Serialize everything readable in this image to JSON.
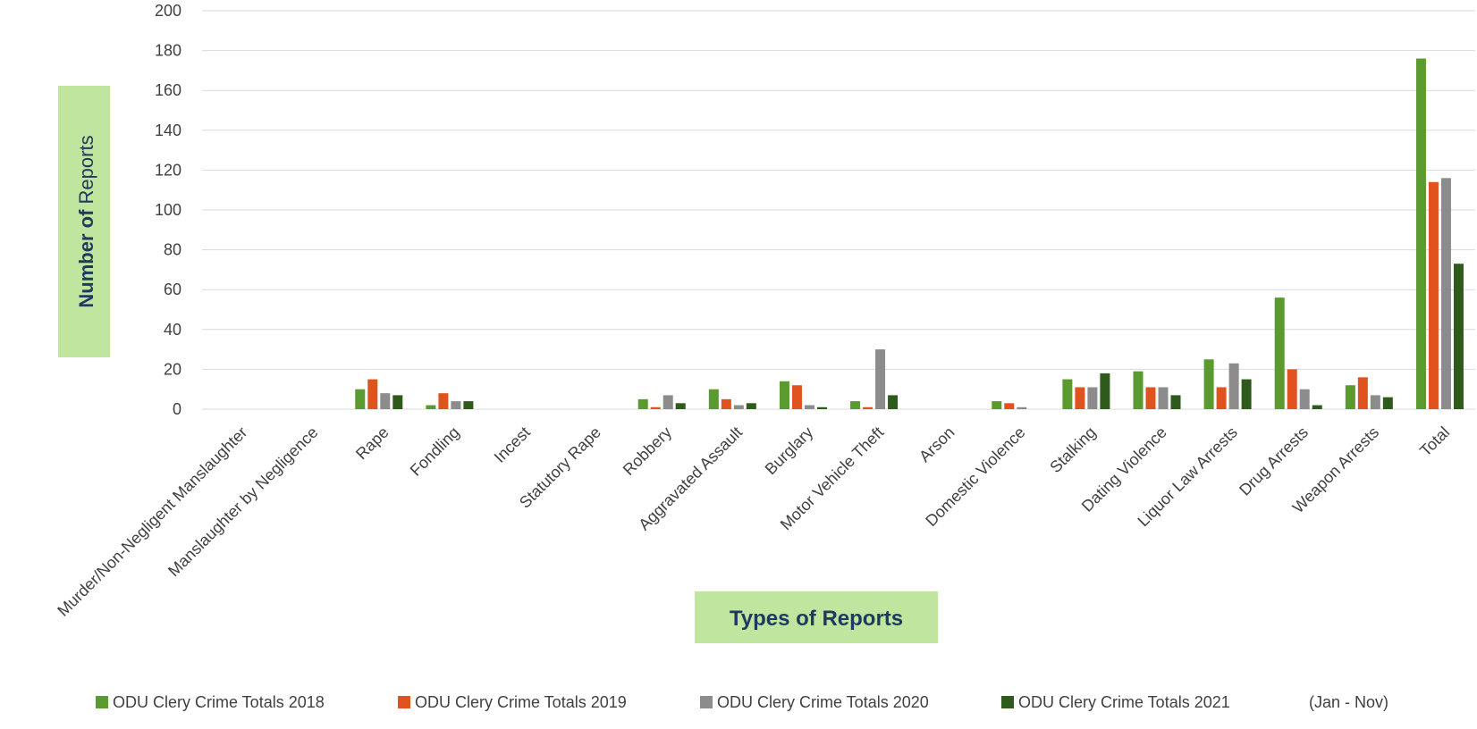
{
  "chart_data": {
    "type": "bar",
    "title": "",
    "xlabel": "Types of Reports",
    "ylabel": {
      "bold": "Number of",
      "regular": "Reports"
    },
    "ylim": [
      0,
      200
    ],
    "yticks": [
      0,
      20,
      40,
      60,
      80,
      100,
      120,
      140,
      160,
      180,
      200
    ],
    "grid": true,
    "legend_position": "bottom",
    "legend_suffix": "(Jan - Nov)",
    "categories": [
      "Murder/Non-Negligent Manslaughter",
      "Manslaughter by Negligence",
      "Rape",
      "Fondling",
      "Incest",
      "Statutory Rape",
      "Robbery",
      "Aggravated Assault",
      "Burglary",
      "Motor Vehicle Theft",
      "Arson",
      "Domestic Violence",
      "Stalking",
      "Dating Violence",
      "Liquor Law Arrests",
      "Drug Arrests",
      "Weapon Arrests",
      "Total"
    ],
    "series": [
      {
        "name": "ODU Clery Crime Totals 2018",
        "color": "#5b9a2f",
        "values": [
          0,
          0,
          10,
          2,
          0,
          0,
          5,
          10,
          14,
          4,
          0,
          4,
          15,
          19,
          25,
          56,
          12,
          176
        ]
      },
      {
        "name": "ODU Clery Crime Totals 2019",
        "color": "#e0531f",
        "values": [
          0,
          0,
          15,
          8,
          0,
          0,
          1,
          5,
          12,
          1,
          0,
          3,
          11,
          11,
          11,
          20,
          16,
          114
        ]
      },
      {
        "name": "ODU Clery Crime Totals 2020",
        "color": "#8c8c8c",
        "values": [
          0,
          0,
          8,
          4,
          0,
          0,
          7,
          2,
          2,
          30,
          0,
          1,
          11,
          11,
          23,
          10,
          7,
          116
        ]
      },
      {
        "name": "ODU Clery Crime Totals 2021",
        "color": "#2e5a1c",
        "values": [
          0,
          0,
          7,
          4,
          0,
          0,
          3,
          3,
          1,
          7,
          0,
          0,
          18,
          7,
          15,
          2,
          6,
          73
        ]
      }
    ],
    "colors": {
      "title_box": "#c0e59e",
      "title_text": "#1f3a5f",
      "grid": "#d9d9d9",
      "axis_text": "#404040"
    }
  }
}
